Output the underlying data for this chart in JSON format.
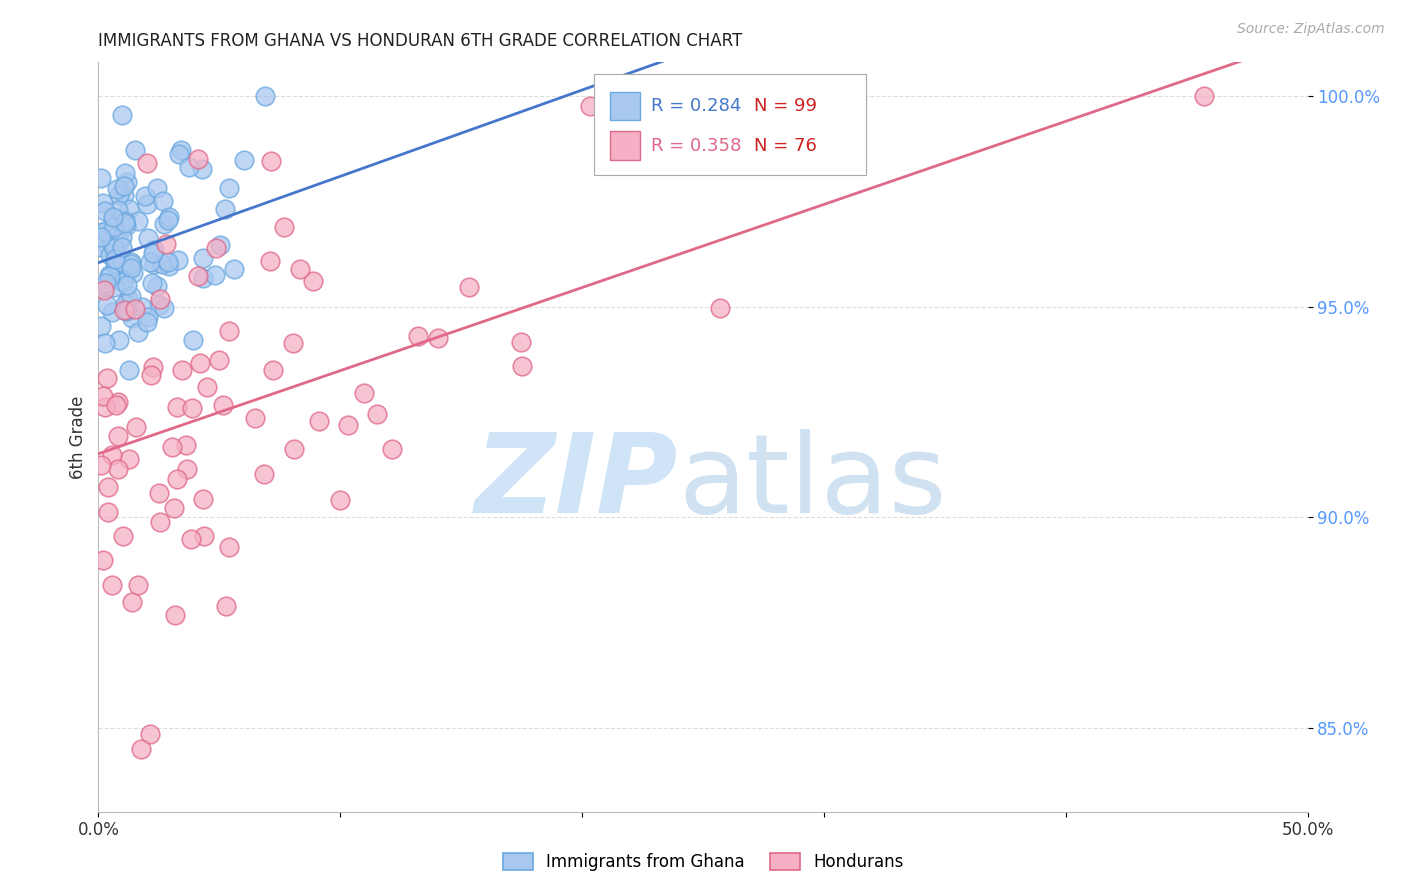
{
  "title": "IMMIGRANTS FROM GHANA VS HONDURAN 6TH GRADE CORRELATION CHART",
  "source": "Source: ZipAtlas.com",
  "ylabel": "6th Grade",
  "blue_scatter_color_face": "#a8c8f0",
  "blue_scatter_color_edge": "#6aa8e0",
  "pink_scatter_color_face": "#f5b0c5",
  "pink_scatter_color_edge": "#e06888",
  "blue_line_color": "#4477cc",
  "pink_line_color": "#e06888",
  "ytick_color": "#5599ff",
  "title_color": "#222222",
  "source_color": "#aaaaaa",
  "ylabel_color": "#333333",
  "xtick_color": "#333333",
  "grid_color": "#dddddd",
  "xlim": [
    0.0,
    0.5
  ],
  "ylim": [
    0.83,
    1.008
  ],
  "ytick_vals": [
    0.85,
    0.9,
    0.95,
    1.0
  ],
  "ytick_labels": [
    "85.0%",
    "90.0%",
    "95.0%",
    "100.0%"
  ],
  "xtick_vals": [
    0.0,
    0.1,
    0.2,
    0.3,
    0.4,
    0.5
  ],
  "xtick_labels": [
    "0.0%",
    "",
    "",
    "",
    "",
    "50.0%"
  ],
  "legend_r1_text": "R = 0.284",
  "legend_n1_text": "N = 99",
  "legend_r2_text": "R = 0.358",
  "legend_n2_text": "N = 76",
  "legend_r_color1": "#4477cc",
  "legend_r_color2": "#e06888",
  "legend_n_color": "#cc2222",
  "watermark_zip_color": "#d0e4f7",
  "watermark_atlas_color": "#c8ddf0",
  "bottom_legend_labels": [
    "Immigrants from Ghana",
    "Hondurans"
  ]
}
